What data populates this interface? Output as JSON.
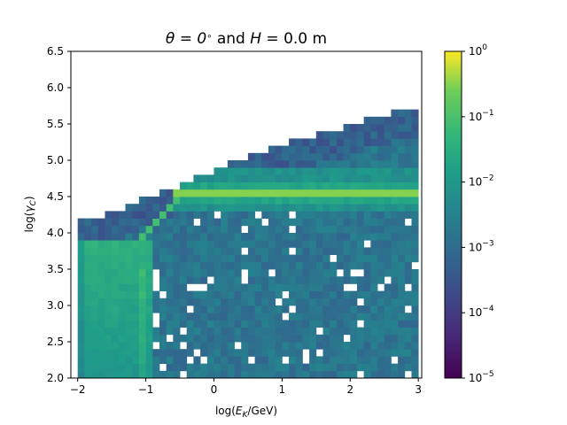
{
  "figure": {
    "title_parts": [
      "θ = 0",
      "∘",
      " and ",
      "H",
      " = 0.0 m"
    ]
  },
  "chart_data": {
    "type": "heatmap",
    "title": "θ = 0° and H = 0.0 m",
    "xlabel": "log(E_K/GeV)",
    "ylabel": "log(γ_C)",
    "xlim": [
      -2.1,
      3.05
    ],
    "ylim": [
      2.0,
      6.5
    ],
    "x_ticks": [
      -2,
      -1,
      0,
      1,
      2,
      3
    ],
    "x_tick_labels": [
      "−2",
      "−1",
      "0",
      "1",
      "2",
      "3"
    ],
    "y_ticks": [
      2.0,
      2.5,
      3.0,
      3.5,
      4.0,
      4.5,
      5.0,
      5.5,
      6.0,
      6.5
    ],
    "y_tick_labels": [
      "2.0",
      "2.5",
      "3.0",
      "3.5",
      "4.0",
      "4.5",
      "5.0",
      "5.5",
      "6.0",
      "6.5"
    ],
    "grid": false,
    "colormap": "viridis",
    "color_scale": "log",
    "colorbar": {
      "range": [
        1e-05,
        1
      ],
      "ticks": [
        {
          "value": 1e-05,
          "base": "10",
          "exp": "−5"
        },
        {
          "value": 0.0001,
          "base": "10",
          "exp": "−4"
        },
        {
          "value": 0.001,
          "base": "10",
          "exp": "−3"
        },
        {
          "value": 0.01,
          "base": "10",
          "exp": "−2"
        },
        {
          "value": 0.1,
          "base": "10",
          "exp": "−1"
        },
        {
          "value": 1,
          "base": "10",
          "exp": "0"
        }
      ]
    },
    "bins": {
      "x_start": -2.0,
      "x_end": 3.0,
      "nx": 50,
      "y_start": 2.0,
      "y_end": 6.0,
      "ny": 40
    },
    "features": {
      "ridge": {
        "x_start": -0.6,
        "y": 4.52,
        "peak_value": 0.3
      },
      "low_energy_plateau": {
        "x_range": [
          -2.0,
          -0.9
        ],
        "y_top": 3.95,
        "value": 0.04
      },
      "background_value": 0.0015
    }
  }
}
